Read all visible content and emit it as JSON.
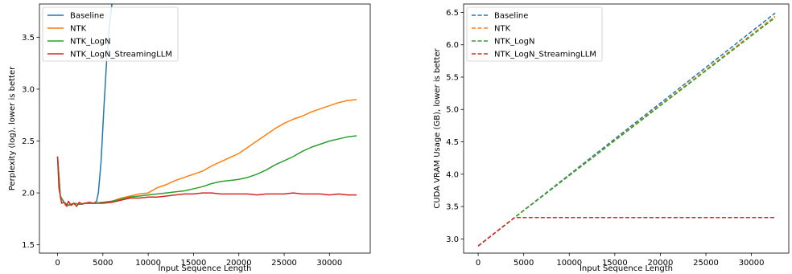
{
  "chart_data": [
    {
      "type": "line",
      "xlabel": "Input Sequence Length",
      "ylabel": "Perplexity (log), lower is better",
      "xlim": [
        -2000,
        34500
      ],
      "ylim": [
        1.42,
        3.82
      ],
      "xticks": [
        0,
        5000,
        10000,
        15000,
        20000,
        25000,
        30000
      ],
      "yticks": [
        1.5,
        2.0,
        2.5,
        3.0,
        3.5
      ],
      "ytick_labels": [
        "1.5",
        "2.0",
        "2.5",
        "3.0",
        "3.5"
      ],
      "grid": false,
      "legend_position": "top-left",
      "series": [
        {
          "name": "Baseline",
          "color": "#1f77b4",
          "dash": "solid",
          "x": [
            0,
            300,
            700,
            1200,
            1800,
            2400,
            3000,
            3500,
            4000,
            4300,
            4500,
            4800,
            5100,
            5400,
            5700,
            6000,
            6200
          ],
          "y": [
            2.35,
            1.97,
            1.91,
            1.88,
            1.9,
            1.89,
            1.9,
            1.9,
            1.9,
            1.92,
            2.0,
            2.3,
            2.8,
            3.25,
            3.6,
            3.82,
            3.9
          ]
        },
        {
          "name": "NTK",
          "color": "#ff7f0e",
          "dash": "solid",
          "x": [
            0,
            300,
            700,
            1200,
            1800,
            2400,
            3000,
            3500,
            4000,
            5000,
            6000,
            7000,
            8000,
            9000,
            10000,
            11000,
            12000,
            13000,
            14000,
            15000,
            16000,
            17000,
            18000,
            19000,
            20000,
            21000,
            22000,
            23000,
            24000,
            25000,
            26000,
            27000,
            28000,
            29000,
            30000,
            31000,
            32000,
            33000
          ],
          "y": [
            2.35,
            1.97,
            1.91,
            1.88,
            1.9,
            1.89,
            1.9,
            1.9,
            1.9,
            1.91,
            1.92,
            1.95,
            1.97,
            1.99,
            2.0,
            2.05,
            2.08,
            2.12,
            2.15,
            2.18,
            2.21,
            2.26,
            2.3,
            2.34,
            2.38,
            2.44,
            2.5,
            2.56,
            2.62,
            2.67,
            2.71,
            2.74,
            2.78,
            2.81,
            2.84,
            2.87,
            2.89,
            2.9
          ]
        },
        {
          "name": "NTK_LogN",
          "color": "#2ca02c",
          "dash": "solid",
          "x": [
            0,
            300,
            700,
            1200,
            1800,
            2400,
            3000,
            3500,
            4000,
            5000,
            6000,
            7000,
            8000,
            9000,
            10000,
            11000,
            12000,
            13000,
            14000,
            15000,
            16000,
            17000,
            18000,
            19000,
            20000,
            21000,
            22000,
            23000,
            24000,
            25000,
            26000,
            27000,
            28000,
            29000,
            30000,
            31000,
            32000,
            33000
          ],
          "y": [
            2.35,
            1.97,
            1.91,
            1.88,
            1.9,
            1.89,
            1.9,
            1.9,
            1.9,
            1.91,
            1.92,
            1.94,
            1.96,
            1.97,
            1.98,
            1.99,
            2.0,
            2.01,
            2.02,
            2.04,
            2.06,
            2.09,
            2.11,
            2.12,
            2.13,
            2.15,
            2.18,
            2.22,
            2.27,
            2.31,
            2.35,
            2.4,
            2.44,
            2.47,
            2.5,
            2.52,
            2.54,
            2.55
          ]
        },
        {
          "name": "NTK_LogN_StreamingLLM",
          "color": "#d62728",
          "dash": "solid",
          "x": [
            0,
            150,
            300,
            450,
            700,
            1000,
            1200,
            1500,
            1800,
            2100,
            2400,
            2700,
            3000,
            3500,
            4000,
            5000,
            6000,
            7000,
            8000,
            9000,
            10000,
            11000,
            12000,
            13000,
            14000,
            15000,
            16000,
            17000,
            18000,
            19000,
            20000,
            21000,
            22000,
            23000,
            24000,
            25000,
            26000,
            27000,
            28000,
            29000,
            30000,
            31000,
            32000,
            33000
          ],
          "y": [
            2.35,
            2.05,
            1.97,
            1.9,
            1.91,
            1.87,
            1.92,
            1.88,
            1.9,
            1.87,
            1.91,
            1.89,
            1.9,
            1.91,
            1.9,
            1.9,
            1.91,
            1.93,
            1.95,
            1.95,
            1.96,
            1.96,
            1.97,
            1.98,
            1.99,
            1.99,
            2.0,
            2.0,
            1.99,
            1.99,
            1.99,
            1.99,
            1.98,
            1.99,
            1.99,
            1.99,
            2.0,
            1.99,
            1.99,
            1.99,
            1.98,
            1.99,
            1.98,
            1.98
          ]
        }
      ]
    },
    {
      "type": "line",
      "xlabel": "Input Sequence Length",
      "ylabel": "CUDA VRAM Usage (GB), lower is better",
      "xlim": [
        -1600,
        34100
      ],
      "ylim": [
        2.78,
        6.63
      ],
      "xticks": [
        0,
        5000,
        10000,
        15000,
        20000,
        25000,
        30000
      ],
      "yticks": [
        3.0,
        3.5,
        4.0,
        4.5,
        5.0,
        5.5,
        6.0,
        6.5
      ],
      "ytick_labels": [
        "3.0",
        "3.5",
        "4.0",
        "4.5",
        "5.0",
        "5.5",
        "6.0",
        "6.5"
      ],
      "grid": false,
      "legend_position": "top-left",
      "series": [
        {
          "name": "Baseline",
          "color": "#1f77b4",
          "dash": "dashed",
          "x": [
            0,
            4000,
            32600
          ],
          "y": [
            2.89,
            3.33,
            6.49
          ]
        },
        {
          "name": "NTK",
          "color": "#ff7f0e",
          "dash": "dashed",
          "x": [
            0,
            4000,
            32600
          ],
          "y": [
            2.89,
            3.33,
            6.44
          ]
        },
        {
          "name": "NTK_LogN",
          "color": "#2ca02c",
          "dash": "dashed",
          "x": [
            0,
            4000,
            32600
          ],
          "y": [
            2.89,
            3.33,
            6.42
          ]
        },
        {
          "name": "NTK_LogN_StreamingLLM",
          "color": "#d62728",
          "dash": "dashed",
          "x": [
            0,
            4000,
            32600
          ],
          "y": [
            2.89,
            3.33,
            3.33
          ]
        }
      ]
    }
  ]
}
